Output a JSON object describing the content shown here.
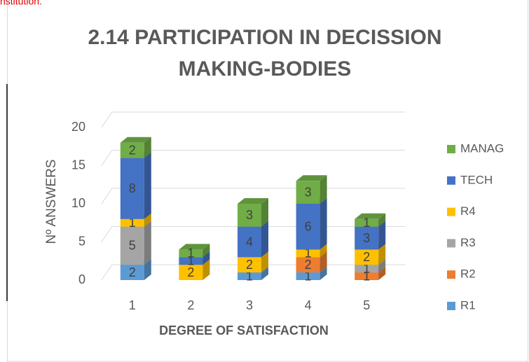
{
  "page_text": "nstitution.",
  "chart_data": {
    "type": "bar3d_stacked",
    "title": [
      "2.14 PARTICIPATION IN DECISSION",
      "MAKING-BODIES"
    ],
    "x_label": "DEGREE OF SATISFACTION",
    "y_label": "Nº ANSWERS",
    "categories": [
      "1",
      "2",
      "3",
      "4",
      "5"
    ],
    "series": [
      {
        "name": "R1",
        "color": "#5b9bd5",
        "values": [
          2,
          0,
          1,
          1,
          0
        ]
      },
      {
        "name": "R2",
        "color": "#ed7d31",
        "values": [
          0,
          0,
          0,
          2,
          1
        ]
      },
      {
        "name": "R3",
        "color": "#a5a5a5",
        "values": [
          5,
          0,
          0,
          0,
          1
        ]
      },
      {
        "name": "R4",
        "color": "#ffc000",
        "values": [
          1,
          2,
          2,
          1,
          2
        ]
      },
      {
        "name": "TECH",
        "color": "#4472c4",
        "values": [
          8,
          1,
          4,
          6,
          3
        ]
      },
      {
        "name": "MANAG",
        "color": "#70ad47",
        "values": [
          2,
          1,
          3,
          3,
          1
        ]
      }
    ],
    "ylim": [
      0,
      20
    ],
    "yticks": [
      0,
      5,
      10,
      15,
      20
    ],
    "grid": true,
    "legend": "right"
  }
}
